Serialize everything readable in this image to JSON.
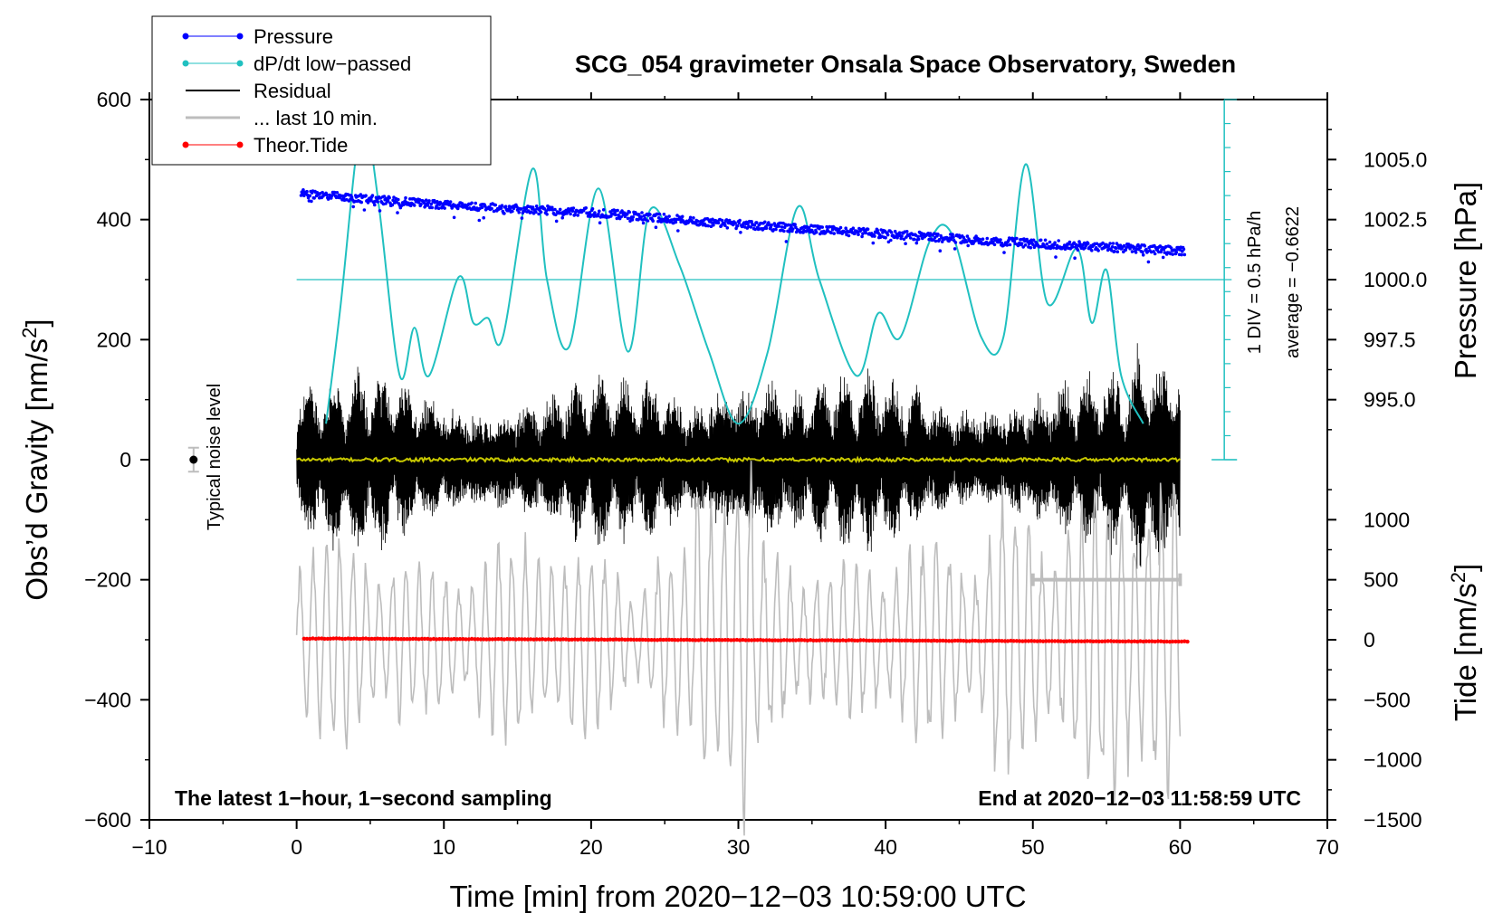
{
  "chart_data": {
    "type": "line",
    "title": "SCG_054 gravimeter Onsala Space Observatory, Sweden",
    "xlabel": "Time [min] from 2020−12−03 10:59:00 UTC",
    "xlim": [
      -10,
      70
    ],
    "xticks": [
      -10,
      0,
      10,
      20,
      30,
      40,
      50,
      60,
      70
    ],
    "xtick_labels": [
      "−10",
      "0",
      "10",
      "20",
      "30",
      "40",
      "50",
      "60",
      "70"
    ],
    "left_axis": {
      "label_main": "Obs’d Gravity [nm/s",
      "label_sup": "2",
      "label_end": "]",
      "ylim": [
        -600,
        600
      ],
      "ticks": [
        -600,
        -400,
        -200,
        0,
        200,
        400,
        600
      ],
      "tick_labels": [
        "−600",
        "−400",
        "−200",
        "0",
        "200",
        "400",
        "600"
      ]
    },
    "pressure_axis": {
      "label": "Pressure [hPa]",
      "range": [
        992.5,
        1007.5
      ],
      "ticks": [
        995.0,
        997.5,
        1000.0,
        1002.5,
        1005.0
      ],
      "tick_labels": [
        "995.0",
        "997.5",
        "1000.0",
        "1002.5",
        "1005.0"
      ]
    },
    "tide_axis": {
      "label_main": "Tide [nm/s",
      "label_sup": "2",
      "label_end": "]",
      "range": [
        -1500,
        1500
      ],
      "ticks": [
        -1500,
        -1000,
        -500,
        0,
        500,
        1000
      ],
      "tick_labels": [
        "−1500",
        "−1000",
        "−500",
        "0",
        "500",
        "1000"
      ]
    },
    "legend": [
      "Pressure",
      "dP/dt low−passed",
      "Residual",
      "... last 10 min.",
      "Theor.Tide"
    ],
    "legend_position": "top-left",
    "colors": {
      "pressure": "#0000ff",
      "dpdt": "#20c0c0",
      "residual": "#000000",
      "last10": "#bdbdbd",
      "tide": "#ff0000",
      "residual_mean": "#c8c800",
      "noise": "#bdbdbd"
    },
    "series": [
      {
        "name": "Pressure",
        "unit": "hPa",
        "axis": "pressure",
        "x": [
          0,
          10,
          20,
          30,
          40,
          50,
          60
        ],
        "values": [
          1003.6,
          1003.1,
          1002.8,
          1002.3,
          1001.9,
          1001.5,
          1001.2
        ]
      },
      {
        "name": "dP/dt low−passed",
        "unit": "hPa/h",
        "axis": "dpdt",
        "ylim": [
          -3,
          3.5
        ],
        "x": [
          2,
          3,
          4,
          4.6,
          5.6,
          7,
          8,
          9,
          11,
          12,
          13,
          14,
          16,
          17,
          18.5,
          20.5,
          22.5,
          24,
          26,
          28,
          30,
          32,
          34,
          35.5,
          38,
          39.5,
          41,
          43,
          44.5,
          46.5,
          48,
          49.5,
          51,
          53,
          54,
          55,
          56,
          57.5
        ],
        "values": [
          -3,
          -0.5,
          2.5,
          3.5,
          1.5,
          -2,
          -1,
          -2,
          0.05,
          -0.9,
          -0.8,
          -1.2,
          2.3,
          0,
          -1.4,
          1.9,
          -1.5,
          1.45,
          0.3,
          -1.5,
          -3,
          -1.5,
          1.5,
          0,
          -2,
          -0.7,
          -1.2,
          0.8,
          0.95,
          -1.2,
          -1.2,
          2.4,
          -0.5,
          0.65,
          -0.9,
          0.2,
          -2,
          -3
        ]
      },
      {
        "name": "Residual",
        "unit": "nm/s2",
        "axis": "left",
        "x_range": [
          0,
          60
        ],
        "envelope_nm_s2": 150
      },
      {
        "name": "... last 10 min.",
        "unit": "nm/s2",
        "axis": "left",
        "note": "drawn shifted down by 300 nm/s2"
      },
      {
        "name": "Theor.Tide",
        "unit": "nm/s2",
        "axis": "tide",
        "x": [
          0.5,
          60.5
        ],
        "values": [
          10,
          -15
        ]
      }
    ],
    "dpdt_scale": {
      "div_label": "1 DIV = 0.5 hPa/h",
      "average_label": "average = −0.6622",
      "average_value": -0.6622
    },
    "noise_label": "Typical noise level",
    "noise_level_nm_s2": 20,
    "noise_x": -7,
    "last10_range_min": [
      50,
      60
    ],
    "bottom_left_text": "The latest 1−hour, 1−second sampling",
    "bottom_right_text": "End at 2020−12−03 11:58:59 UTC"
  }
}
